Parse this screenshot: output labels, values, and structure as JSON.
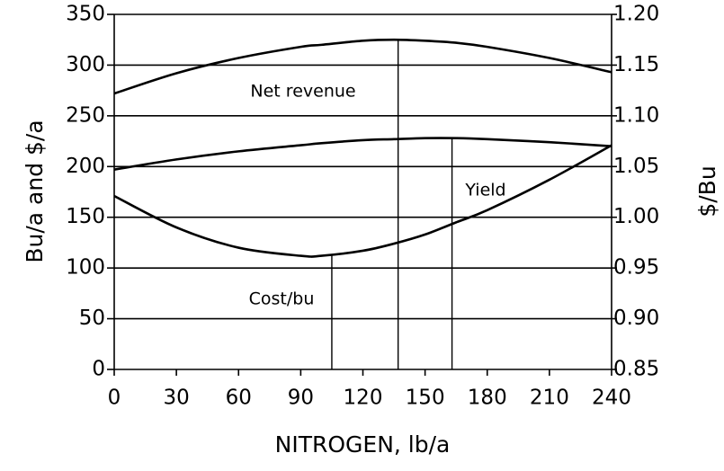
{
  "chart_data": {
    "type": "line",
    "xlabel": "NITROGEN,  lb/a",
    "ylabel": "Bu/a and $/a",
    "y2label": "$/Bu",
    "x": [
      0,
      30,
      60,
      90,
      100,
      120,
      135,
      150,
      165,
      180,
      210,
      240
    ],
    "series": [
      {
        "name": "Net revenue",
        "color": "#000000",
        "values": [
          272,
          292,
          307,
          318,
          320,
          324,
          325,
          324,
          322,
          318,
          307,
          293
        ]
      },
      {
        "name": "Yield",
        "color": "#000000",
        "values": [
          197,
          207,
          215,
          221,
          223,
          226,
          227,
          228,
          228,
          227,
          224,
          220
        ]
      },
      {
        "name": "Cost/bu",
        "color": "#000000",
        "axis": "y2",
        "values": [
          1.021,
          0.99,
          0.97,
          0.962,
          0.962,
          0.967,
          0.974,
          0.983,
          0.995,
          1.007,
          1.037,
          1.071
        ]
      }
    ],
    "vlines": [
      {
        "x": 105,
        "series": "Cost/bu"
      },
      {
        "x": 137,
        "series": "Net revenue"
      },
      {
        "x": 163,
        "series": "Yield"
      }
    ],
    "xlim": [
      0,
      240
    ],
    "xticks": [
      0,
      30,
      60,
      90,
      120,
      150,
      180,
      210,
      240
    ],
    "ylim": [
      0,
      350
    ],
    "yticks": [
      0,
      50,
      100,
      150,
      200,
      250,
      300,
      350
    ],
    "y2lim": [
      0.85,
      1.2
    ],
    "y2ticks": [
      0.85,
      {
        "value": 0.9,
        "label": "0.90"
      },
      0.95,
      {
        "value": 1.0,
        "label": "1.00"
      },
      1.05,
      {
        "value": 1.1,
        "label": "1.10"
      },
      1.15,
      {
        "value": 1.2,
        "label": "1.20"
      }
    ],
    "grid": true
  }
}
